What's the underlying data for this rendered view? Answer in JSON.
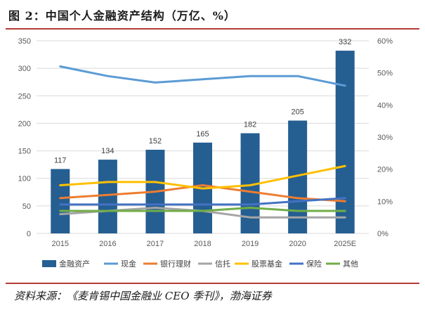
{
  "title": "图 2：中国个人金融资产结构（万亿、%）",
  "source": "资料来源：《麦肯锡中国金融业 CEO 季刊》，渤海证券",
  "colors": {
    "accent_rule": "#b43c37",
    "bar": "#255e91",
    "cash": "#5b9bd5",
    "bank_wealth": "#ed7d31",
    "trust": "#a5a5a5",
    "stock_fund": "#ffc000",
    "insurance": "#4472c4",
    "other": "#70ad47"
  },
  "chart_data": {
    "type": "bar",
    "categories": [
      "2015",
      "2016",
      "2017",
      "2018",
      "2019",
      "2020",
      "2025E"
    ],
    "bar_series": {
      "name": "金融资产",
      "values": [
        117,
        134,
        152,
        165,
        182,
        205,
        332
      ],
      "data_labels": [
        "117",
        "134",
        "152",
        "165",
        "182",
        "205",
        "332"
      ],
      "axis": "left"
    },
    "line_series": [
      {
        "name": "现金",
        "values": [
          52,
          49,
          47,
          48,
          49,
          49,
          46
        ],
        "axis": "right"
      },
      {
        "name": "银行理财",
        "values": [
          11,
          12,
          13,
          15,
          13,
          11,
          10
        ],
        "axis": "right"
      },
      {
        "name": "信托",
        "values": [
          6,
          7,
          8,
          7,
          5,
          5,
          5
        ],
        "axis": "right"
      },
      {
        "name": "股票基金",
        "values": [
          15,
          16,
          16,
          14,
          15,
          18,
          21
        ],
        "axis": "right"
      },
      {
        "name": "保险",
        "values": [
          9,
          9,
          9,
          9,
          9,
          10,
          11
        ],
        "axis": "right"
      },
      {
        "name": "其他",
        "values": [
          7,
          7,
          7,
          7,
          8,
          7,
          7
        ],
        "axis": "right"
      }
    ],
    "y_left": {
      "min": 0,
      "max": 350,
      "step": 50,
      "ticks": [
        "0",
        "50",
        "100",
        "150",
        "200",
        "250",
        "300",
        "350"
      ]
    },
    "y_right": {
      "min": 0,
      "max": 60,
      "step": 10,
      "ticks": [
        "0%",
        "10%",
        "20%",
        "30%",
        "40%",
        "50%",
        "60%"
      ]
    },
    "grid": true,
    "legend_position": "bottom",
    "legend": [
      "金融资产",
      "现金",
      "银行理财",
      "信托",
      "股票基金",
      "保险",
      "其他"
    ]
  }
}
